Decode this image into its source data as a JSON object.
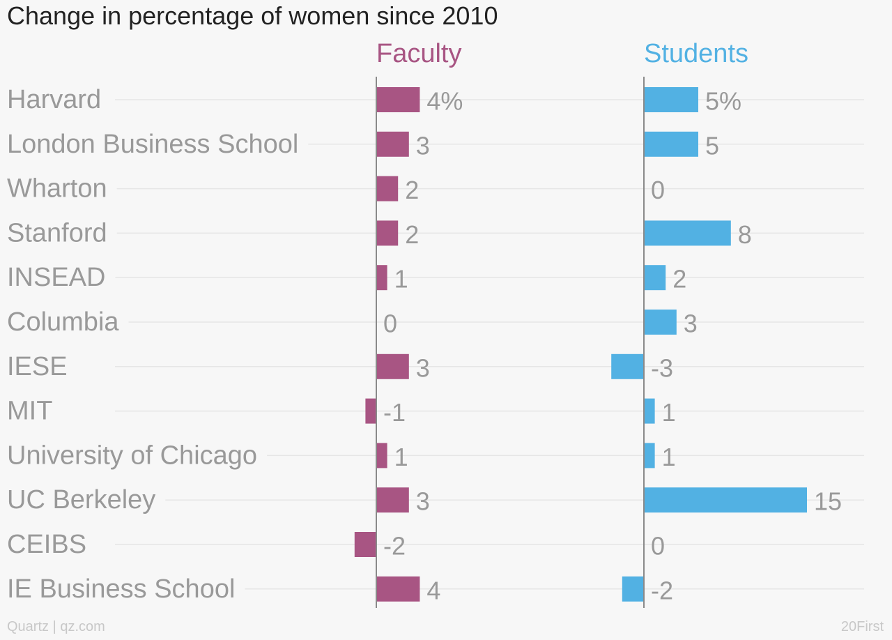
{
  "title": "Change in percentage of women since 2010",
  "footer": {
    "source": "Quartz | qz.com",
    "credit": "20First"
  },
  "colors": {
    "faculty": "#a85583",
    "students": "#52b1e3",
    "label_text": "#999999",
    "gridline": "#e6e6e6",
    "axis": "#8a8a8a"
  },
  "chart_data": {
    "type": "bar",
    "orientation": "horizontal",
    "title": "Change in percentage of women since 2010",
    "unit": "%",
    "categories": [
      "Harvard",
      "London Business School",
      "Wharton",
      "Stanford",
      "INSEAD",
      "Columbia",
      "IESE",
      "MIT",
      "University of Chicago",
      "UC Berkeley",
      "CEIBS",
      "IE Business School"
    ],
    "series": [
      {
        "name": "Faculty",
        "values": [
          4,
          3,
          2,
          2,
          1,
          0,
          3,
          -1,
          1,
          3,
          -2,
          4
        ]
      },
      {
        "name": "Students",
        "values": [
          5,
          5,
          0,
          8,
          2,
          3,
          -3,
          1,
          1,
          15,
          0,
          -2
        ]
      }
    ]
  }
}
